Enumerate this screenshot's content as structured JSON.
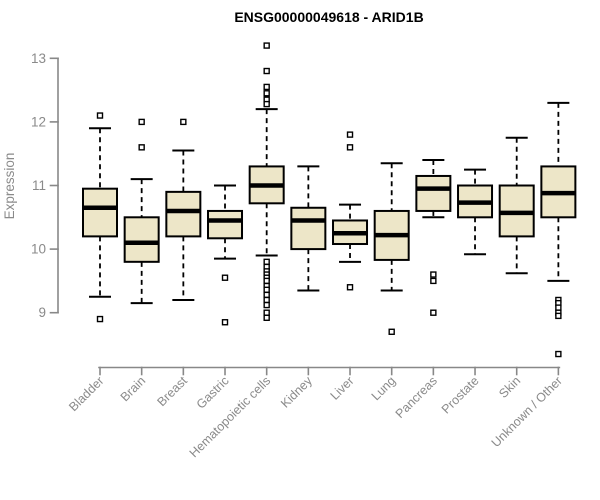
{
  "chart_data": {
    "type": "boxplot",
    "title": "ENSG00000049618 - ARID1B",
    "ylabel": "Expression",
    "xlabel": "",
    "y_ticks": [
      9,
      10,
      11,
      12,
      13
    ],
    "ylim": [
      8.2,
      13.35
    ],
    "grid": false,
    "legend": "none",
    "categories": [
      "Bladder",
      "Brain",
      "Breast",
      "Gastric",
      "Hematopoietic cells",
      "Kidney",
      "Liver",
      "Lung",
      "Pancreas",
      "Prostate",
      "Skin",
      "Unknown / Other"
    ],
    "series": [
      {
        "category": "Bladder",
        "whisker_low": 9.25,
        "q1": 10.2,
        "median": 10.65,
        "q3": 10.95,
        "whisker_high": 11.9,
        "outliers": [
          12.1,
          8.9
        ]
      },
      {
        "category": "Brain",
        "whisker_low": 9.15,
        "q1": 9.8,
        "median": 10.1,
        "q3": 10.5,
        "whisker_high": 11.1,
        "outliers": [
          12.0,
          11.6
        ]
      },
      {
        "category": "Breast",
        "whisker_low": 9.2,
        "q1": 10.2,
        "median": 10.6,
        "q3": 10.9,
        "whisker_high": 11.55,
        "outliers": [
          12.0
        ]
      },
      {
        "category": "Gastric",
        "whisker_low": 9.85,
        "q1": 10.17,
        "median": 10.45,
        "q3": 10.6,
        "whisker_high": 11.0,
        "outliers": [
          9.55,
          8.85
        ]
      },
      {
        "category": "Hematopoietic cells",
        "whisker_low": 9.9,
        "q1": 10.72,
        "median": 11.0,
        "q3": 11.3,
        "whisker_high": 12.2,
        "outliers": [
          13.2,
          12.8,
          12.55,
          12.45,
          12.35,
          12.28,
          9.8,
          9.72,
          9.65,
          9.6,
          9.55,
          9.5,
          9.42,
          9.36,
          9.28,
          9.2,
          9.12,
          9.0,
          8.92
        ]
      },
      {
        "category": "Kidney",
        "whisker_low": 9.35,
        "q1": 10.0,
        "median": 10.45,
        "q3": 10.65,
        "whisker_high": 11.3,
        "outliers": []
      },
      {
        "category": "Liver",
        "whisker_low": 9.8,
        "q1": 10.08,
        "median": 10.25,
        "q3": 10.45,
        "whisker_high": 10.7,
        "outliers": [
          11.8,
          11.6,
          9.4
        ]
      },
      {
        "category": "Lung",
        "whisker_low": 9.35,
        "q1": 9.83,
        "median": 10.22,
        "q3": 10.6,
        "whisker_high": 11.35,
        "outliers": [
          8.7
        ]
      },
      {
        "category": "Pancreas",
        "whisker_low": 10.5,
        "q1": 10.6,
        "median": 10.95,
        "q3": 11.15,
        "whisker_high": 11.4,
        "outliers": [
          9.6,
          9.5,
          9.0
        ]
      },
      {
        "category": "Prostate",
        "whisker_low": 9.92,
        "q1": 10.5,
        "median": 10.73,
        "q3": 11.0,
        "whisker_high": 11.25,
        "outliers": []
      },
      {
        "category": "Skin",
        "whisker_low": 9.62,
        "q1": 10.2,
        "median": 10.57,
        "q3": 11.0,
        "whisker_high": 11.75,
        "outliers": []
      },
      {
        "category": "Unknown / Other",
        "whisker_low": 9.5,
        "q1": 10.5,
        "median": 10.88,
        "q3": 11.3,
        "whisker_high": 12.3,
        "outliers": [
          9.2,
          9.15,
          9.08,
          9.0,
          8.95,
          8.35
        ]
      }
    ],
    "colors": {
      "box_fill": "#ede6c8",
      "box_border": "#000000",
      "median": "#000000",
      "axis": "#888888",
      "tick_label": "#8a8a8a",
      "title": "#000000",
      "background": "#ffffff"
    }
  }
}
